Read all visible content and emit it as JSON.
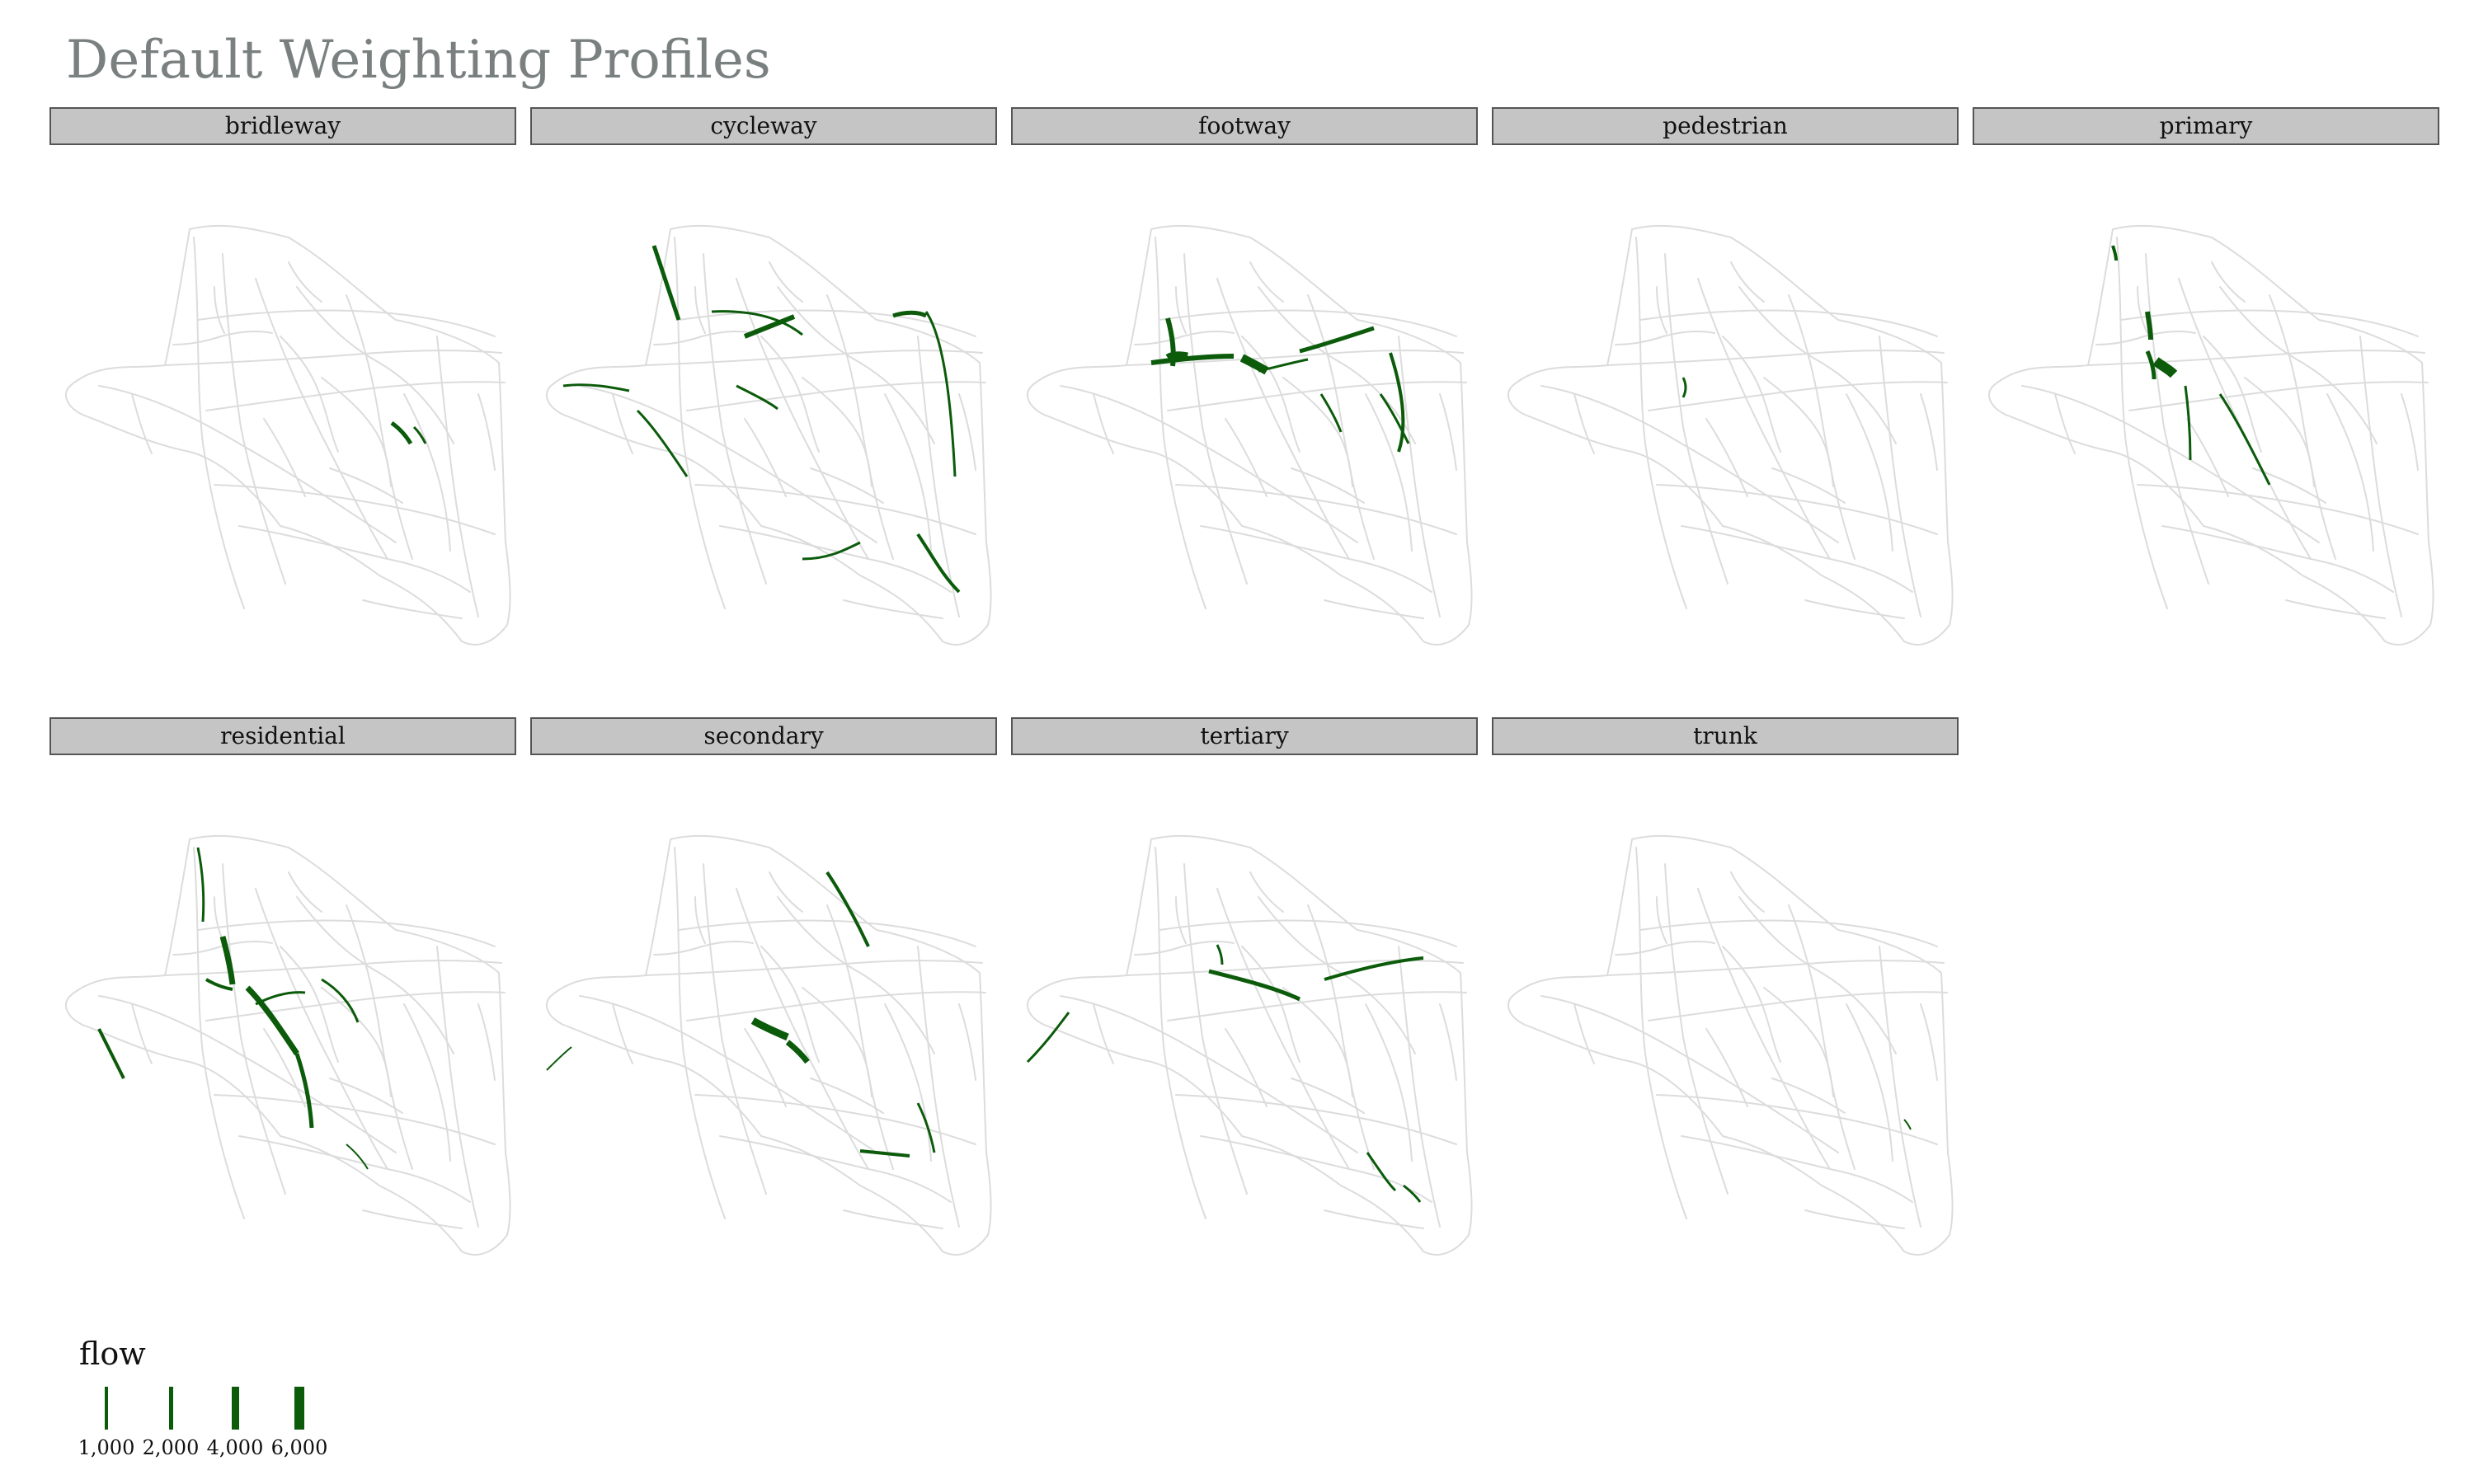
{
  "title": "Default Weighting Profiles",
  "colors": {
    "network": "#dcdcdc",
    "flow": "#0b5b0b",
    "title": "#7a8080",
    "strip": "#c5c5c5"
  },
  "panels": [
    {
      "label": "bridleway"
    },
    {
      "label": "cycleway"
    },
    {
      "label": "footway"
    },
    {
      "label": "pedestrian"
    },
    {
      "label": "primary"
    },
    {
      "label": "residential"
    },
    {
      "label": "secondary"
    },
    {
      "label": "tertiary"
    },
    {
      "label": "trunk"
    }
  ],
  "legend": {
    "title": "flow",
    "items": [
      {
        "label": "1,000",
        "value": 1000
      },
      {
        "label": "2,000",
        "value": 2000
      },
      {
        "label": "4,000",
        "value": 4000
      },
      {
        "label": "6,000",
        "value": 6000
      }
    ]
  }
}
